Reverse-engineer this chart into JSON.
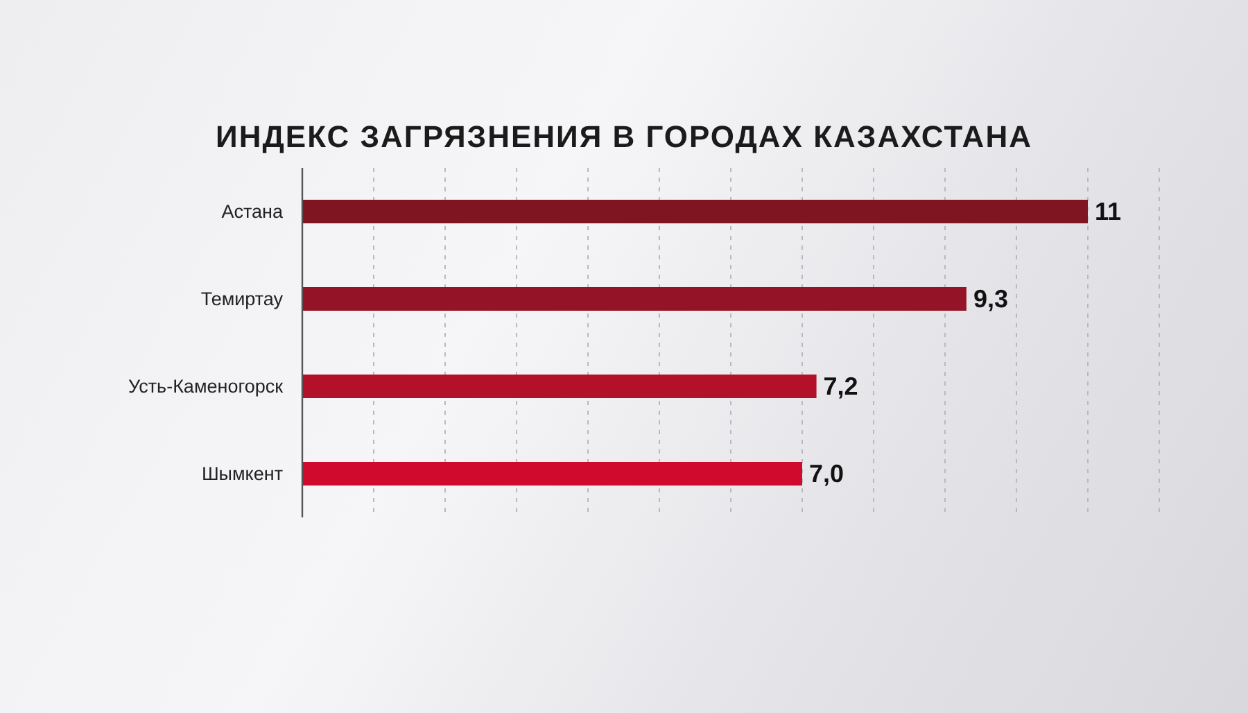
{
  "chart_data": {
    "type": "bar",
    "orientation": "horizontal",
    "title": "ИНДЕКС ЗАГРЯЗНЕНИЯ В ГОРОДАХ КАЗАХСТАНА",
    "categories": [
      "Астана",
      "Темиртау",
      "Усть-Каменогорск",
      "Шымкент"
    ],
    "values": [
      11,
      9.3,
      7.2,
      7.0
    ],
    "colors": [
      "#7f1520",
      "#951326",
      "#b3102a",
      "#d00a2c"
    ],
    "value_labels": [
      "11",
      "9,3",
      "7,2",
      "7,0"
    ],
    "xlim": [
      0,
      12
    ],
    "xticks": [
      {
        "value": 0,
        "label": null
      },
      {
        "value": 1,
        "label": null
      },
      {
        "value": 2,
        "label": null
      },
      {
        "value": 3,
        "label": null
      },
      {
        "value": 4,
        "label": null
      },
      {
        "value": 5,
        "label": null
      },
      {
        "value": 6,
        "label": null
      },
      {
        "value": 7,
        "label": null
      },
      {
        "value": 8,
        "label": null
      },
      {
        "value": 9,
        "label": null
      },
      {
        "value": 10,
        "label": null
      },
      {
        "value": 11,
        "label": null
      },
      {
        "value": 12,
        "label": null
      }
    ],
    "grid": "x",
    "tick_labels": "y"
  }
}
